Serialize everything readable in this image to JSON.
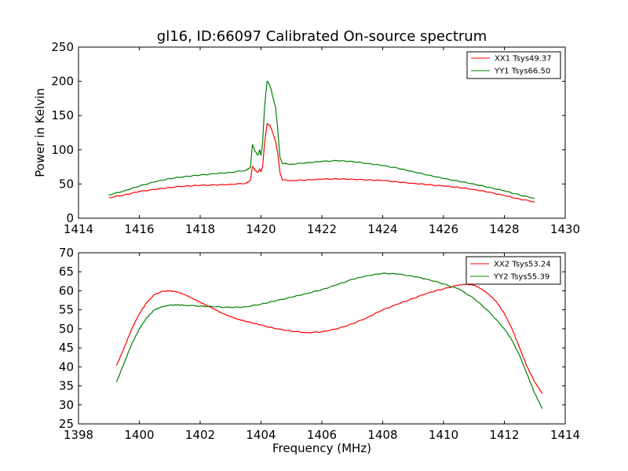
{
  "figure": {
    "title": "gl16, ID:66097 Calibrated On-source spectrum",
    "xlabel": "Frequency (MHz)"
  },
  "colors": {
    "red": "#ff0000",
    "green": "#008000"
  },
  "chart_data": [
    {
      "type": "line",
      "ylabel": "Power in Kelvin",
      "xlim": [
        1414,
        1430
      ],
      "ylim": [
        0,
        250
      ],
      "xticks": [
        1414,
        1416,
        1418,
        1420,
        1422,
        1424,
        1426,
        1428,
        1430
      ],
      "yticks": [
        0,
        50,
        100,
        150,
        200,
        250
      ],
      "legend_position": "top-right",
      "series": [
        {
          "name": "XX1 Tsys49.37",
          "color": "#ff0000",
          "points": [
            [
              1415,
              30
            ],
            [
              1415.5,
              34
            ],
            [
              1416,
              39
            ],
            [
              1416.5,
              42
            ],
            [
              1417,
              45
            ],
            [
              1417.5,
              47
            ],
            [
              1418,
              48
            ],
            [
              1418.5,
              48.5
            ],
            [
              1419,
              49.5
            ],
            [
              1419.5,
              51
            ],
            [
              1419.65,
              55
            ],
            [
              1419.72,
              76
            ],
            [
              1419.8,
              70
            ],
            [
              1419.9,
              67
            ],
            [
              1419.95,
              72
            ],
            [
              1420,
              68
            ],
            [
              1420.05,
              75
            ],
            [
              1420.12,
              110
            ],
            [
              1420.2,
              138
            ],
            [
              1420.28,
              136
            ],
            [
              1420.35,
              130
            ],
            [
              1420.42,
              120
            ],
            [
              1420.48,
              112
            ],
            [
              1420.55,
              95
            ],
            [
              1420.62,
              68
            ],
            [
              1420.7,
              56
            ],
            [
              1421,
              55
            ],
            [
              1421.5,
              56
            ],
            [
              1422,
              57
            ],
            [
              1422.5,
              57.5
            ],
            [
              1423,
              57
            ],
            [
              1423.5,
              56
            ],
            [
              1424,
              55
            ],
            [
              1424.5,
              53
            ],
            [
              1425,
              51
            ],
            [
              1425.5,
              49
            ],
            [
              1426,
              47
            ],
            [
              1426.5,
              45
            ],
            [
              1427,
              42
            ],
            [
              1427.5,
              38
            ],
            [
              1428,
              33
            ],
            [
              1428.5,
              28
            ],
            [
              1429,
              24
            ]
          ]
        },
        {
          "name": "YY1 Tsys66.50",
          "color": "#008000",
          "points": [
            [
              1415,
              34
            ],
            [
              1415.5,
              40
            ],
            [
              1416,
              47
            ],
            [
              1416.5,
              53
            ],
            [
              1417,
              58
            ],
            [
              1417.5,
              61
            ],
            [
              1418,
              63
            ],
            [
              1418.5,
              65
            ],
            [
              1419,
              67
            ],
            [
              1419.5,
              70
            ],
            [
              1419.65,
              74
            ],
            [
              1419.72,
              108
            ],
            [
              1419.8,
              98
            ],
            [
              1419.9,
              92
            ],
            [
              1419.95,
              100
            ],
            [
              1420,
              92
            ],
            [
              1420.05,
              108
            ],
            [
              1420.12,
              165
            ],
            [
              1420.2,
              200
            ],
            [
              1420.25,
              198
            ],
            [
              1420.32,
              190
            ],
            [
              1420.4,
              175
            ],
            [
              1420.48,
              162
            ],
            [
              1420.55,
              130
            ],
            [
              1420.62,
              90
            ],
            [
              1420.7,
              80
            ],
            [
              1421,
              79
            ],
            [
              1421.5,
              81
            ],
            [
              1422,
              83
            ],
            [
              1422.5,
              84
            ],
            [
              1423,
              83
            ],
            [
              1423.5,
              80
            ],
            [
              1424,
              77
            ],
            [
              1424.5,
              73
            ],
            [
              1425,
              68
            ],
            [
              1425.5,
              63
            ],
            [
              1426,
              58
            ],
            [
              1426.5,
              54
            ],
            [
              1427,
              50
            ],
            [
              1427.5,
              45
            ],
            [
              1428,
              40
            ],
            [
              1428.5,
              34
            ],
            [
              1429,
              29
            ]
          ]
        }
      ]
    },
    {
      "type": "line",
      "ylabel": "",
      "xlim": [
        1398,
        1414
      ],
      "ylim": [
        25,
        70
      ],
      "xticks": [
        1398,
        1400,
        1402,
        1404,
        1406,
        1408,
        1410,
        1412,
        1414
      ],
      "yticks": [
        25,
        30,
        35,
        40,
        45,
        50,
        55,
        60,
        65,
        70
      ],
      "legend_position": "top-right",
      "series": [
        {
          "name": "XX2 Tsys53.24",
          "color": "#ff0000",
          "points": [
            [
              1399.25,
              40.3
            ],
            [
              1399.5,
              45
            ],
            [
              1399.75,
              50
            ],
            [
              1400,
              54
            ],
            [
              1400.25,
              57
            ],
            [
              1400.5,
              59
            ],
            [
              1400.75,
              59.8
            ],
            [
              1401,
              60
            ],
            [
              1401.25,
              59.7
            ],
            [
              1401.5,
              59
            ],
            [
              1401.75,
              58
            ],
            [
              1402,
              57
            ],
            [
              1402.25,
              56
            ],
            [
              1402.5,
              55
            ],
            [
              1402.75,
              54
            ],
            [
              1403,
              53.2
            ],
            [
              1403.25,
              52.5
            ],
            [
              1403.5,
              52
            ],
            [
              1403.75,
              51.5
            ],
            [
              1404,
              51
            ],
            [
              1404.5,
              50
            ],
            [
              1405,
              49.4
            ],
            [
              1405.5,
              49
            ],
            [
              1406,
              49.2
            ],
            [
              1406.5,
              50
            ],
            [
              1407,
              51.3
            ],
            [
              1407.5,
              53
            ],
            [
              1408,
              55
            ],
            [
              1408.5,
              56.5
            ],
            [
              1409,
              58
            ],
            [
              1409.5,
              59.5
            ],
            [
              1410,
              60.5
            ],
            [
              1410.5,
              61.5
            ],
            [
              1410.75,
              61.7
            ],
            [
              1411,
              61.5
            ],
            [
              1411.25,
              60.5
            ],
            [
              1411.5,
              59
            ],
            [
              1411.75,
              57
            ],
            [
              1412,
              54
            ],
            [
              1412.25,
              50
            ],
            [
              1412.5,
              45
            ],
            [
              1412.75,
              40
            ],
            [
              1413,
              36
            ],
            [
              1413.25,
              33
            ]
          ]
        },
        {
          "name": "YY2 Tsys55.39",
          "color": "#008000",
          "points": [
            [
              1399.25,
              36
            ],
            [
              1399.5,
              41
            ],
            [
              1399.75,
              46
            ],
            [
              1400,
              50
            ],
            [
              1400.25,
              53
            ],
            [
              1400.5,
              55
            ],
            [
              1400.75,
              55.8
            ],
            [
              1401,
              56.2
            ],
            [
              1401.25,
              56.3
            ],
            [
              1401.5,
              56.2
            ],
            [
              1402,
              56
            ],
            [
              1402.5,
              55.8
            ],
            [
              1403,
              55.6
            ],
            [
              1403.5,
              55.8
            ],
            [
              1404,
              56.5
            ],
            [
              1404.5,
              57.4
            ],
            [
              1405,
              58.3
            ],
            [
              1405.5,
              59.3
            ],
            [
              1406,
              60.3
            ],
            [
              1406.5,
              61.6
            ],
            [
              1407,
              63
            ],
            [
              1407.5,
              64
            ],
            [
              1408,
              64.6
            ],
            [
              1408.5,
              64.4
            ],
            [
              1409,
              63.8
            ],
            [
              1409.5,
              63
            ],
            [
              1410,
              61.8
            ],
            [
              1410.5,
              60.5
            ],
            [
              1411,
              58
            ],
            [
              1411.5,
              54.5
            ],
            [
              1412,
              50
            ],
            [
              1412.25,
              47
            ],
            [
              1412.5,
              43
            ],
            [
              1412.75,
              38
            ],
            [
              1413,
              33
            ],
            [
              1413.25,
              29
            ]
          ]
        }
      ]
    }
  ]
}
